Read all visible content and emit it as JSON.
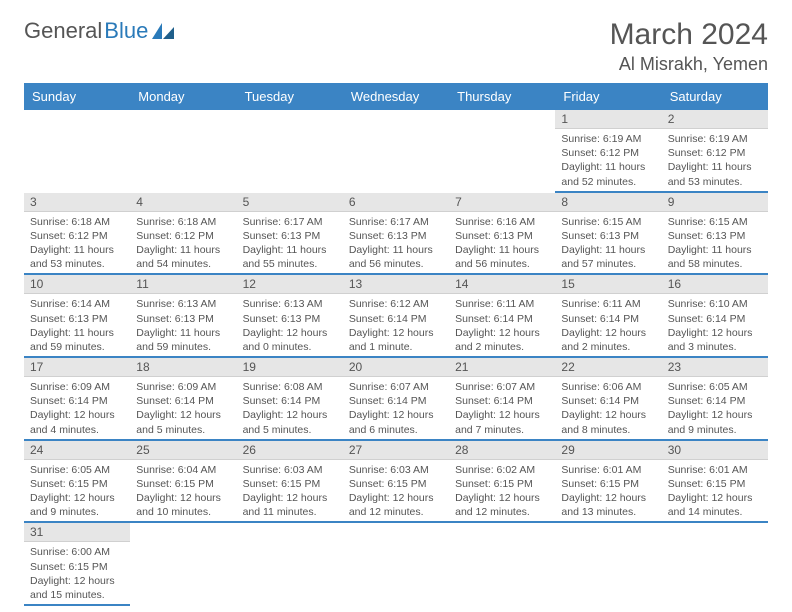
{
  "brand": {
    "part1": "General",
    "part2": "Blue"
  },
  "title": {
    "month_year": "March 2024",
    "location": "Al Misrakh, Yemen"
  },
  "weekdays": [
    "Sunday",
    "Monday",
    "Tuesday",
    "Wednesday",
    "Thursday",
    "Friday",
    "Saturday"
  ],
  "colors": {
    "header_bg": "#3b84c4",
    "daynum_bg": "#e6e6e6",
    "accent": "#2a7ab9"
  },
  "days": {
    "1": {
      "sunrise": "6:19 AM",
      "sunset": "6:12 PM",
      "daylight": "11 hours and 52 minutes."
    },
    "2": {
      "sunrise": "6:19 AM",
      "sunset": "6:12 PM",
      "daylight": "11 hours and 53 minutes."
    },
    "3": {
      "sunrise": "6:18 AM",
      "sunset": "6:12 PM",
      "daylight": "11 hours and 53 minutes."
    },
    "4": {
      "sunrise": "6:18 AM",
      "sunset": "6:12 PM",
      "daylight": "11 hours and 54 minutes."
    },
    "5": {
      "sunrise": "6:17 AM",
      "sunset": "6:13 PM",
      "daylight": "11 hours and 55 minutes."
    },
    "6": {
      "sunrise": "6:17 AM",
      "sunset": "6:13 PM",
      "daylight": "11 hours and 56 minutes."
    },
    "7": {
      "sunrise": "6:16 AM",
      "sunset": "6:13 PM",
      "daylight": "11 hours and 56 minutes."
    },
    "8": {
      "sunrise": "6:15 AM",
      "sunset": "6:13 PM",
      "daylight": "11 hours and 57 minutes."
    },
    "9": {
      "sunrise": "6:15 AM",
      "sunset": "6:13 PM",
      "daylight": "11 hours and 58 minutes."
    },
    "10": {
      "sunrise": "6:14 AM",
      "sunset": "6:13 PM",
      "daylight": "11 hours and 59 minutes."
    },
    "11": {
      "sunrise": "6:13 AM",
      "sunset": "6:13 PM",
      "daylight": "11 hours and 59 minutes."
    },
    "12": {
      "sunrise": "6:13 AM",
      "sunset": "6:13 PM",
      "daylight": "12 hours and 0 minutes."
    },
    "13": {
      "sunrise": "6:12 AM",
      "sunset": "6:14 PM",
      "daylight": "12 hours and 1 minute."
    },
    "14": {
      "sunrise": "6:11 AM",
      "sunset": "6:14 PM",
      "daylight": "12 hours and 2 minutes."
    },
    "15": {
      "sunrise": "6:11 AM",
      "sunset": "6:14 PM",
      "daylight": "12 hours and 2 minutes."
    },
    "16": {
      "sunrise": "6:10 AM",
      "sunset": "6:14 PM",
      "daylight": "12 hours and 3 minutes."
    },
    "17": {
      "sunrise": "6:09 AM",
      "sunset": "6:14 PM",
      "daylight": "12 hours and 4 minutes."
    },
    "18": {
      "sunrise": "6:09 AM",
      "sunset": "6:14 PM",
      "daylight": "12 hours and 5 minutes."
    },
    "19": {
      "sunrise": "6:08 AM",
      "sunset": "6:14 PM",
      "daylight": "12 hours and 5 minutes."
    },
    "20": {
      "sunrise": "6:07 AM",
      "sunset": "6:14 PM",
      "daylight": "12 hours and 6 minutes."
    },
    "21": {
      "sunrise": "6:07 AM",
      "sunset": "6:14 PM",
      "daylight": "12 hours and 7 minutes."
    },
    "22": {
      "sunrise": "6:06 AM",
      "sunset": "6:14 PM",
      "daylight": "12 hours and 8 minutes."
    },
    "23": {
      "sunrise": "6:05 AM",
      "sunset": "6:14 PM",
      "daylight": "12 hours and 9 minutes."
    },
    "24": {
      "sunrise": "6:05 AM",
      "sunset": "6:15 PM",
      "daylight": "12 hours and 9 minutes."
    },
    "25": {
      "sunrise": "6:04 AM",
      "sunset": "6:15 PM",
      "daylight": "12 hours and 10 minutes."
    },
    "26": {
      "sunrise": "6:03 AM",
      "sunset": "6:15 PM",
      "daylight": "12 hours and 11 minutes."
    },
    "27": {
      "sunrise": "6:03 AM",
      "sunset": "6:15 PM",
      "daylight": "12 hours and 12 minutes."
    },
    "28": {
      "sunrise": "6:02 AM",
      "sunset": "6:15 PM",
      "daylight": "12 hours and 12 minutes."
    },
    "29": {
      "sunrise": "6:01 AM",
      "sunset": "6:15 PM",
      "daylight": "12 hours and 13 minutes."
    },
    "30": {
      "sunrise": "6:01 AM",
      "sunset": "6:15 PM",
      "daylight": "12 hours and 14 minutes."
    },
    "31": {
      "sunrise": "6:00 AM",
      "sunset": "6:15 PM",
      "daylight": "12 hours and 15 minutes."
    }
  },
  "labels": {
    "sunrise": "Sunrise:",
    "sunset": "Sunset:",
    "daylight": "Daylight:"
  },
  "grid": [
    [
      0,
      0,
      0,
      0,
      0,
      1,
      2
    ],
    [
      3,
      4,
      5,
      6,
      7,
      8,
      9
    ],
    [
      10,
      11,
      12,
      13,
      14,
      15,
      16
    ],
    [
      17,
      18,
      19,
      20,
      21,
      22,
      23
    ],
    [
      24,
      25,
      26,
      27,
      28,
      29,
      30
    ],
    [
      31,
      0,
      0,
      0,
      0,
      0,
      0
    ]
  ]
}
